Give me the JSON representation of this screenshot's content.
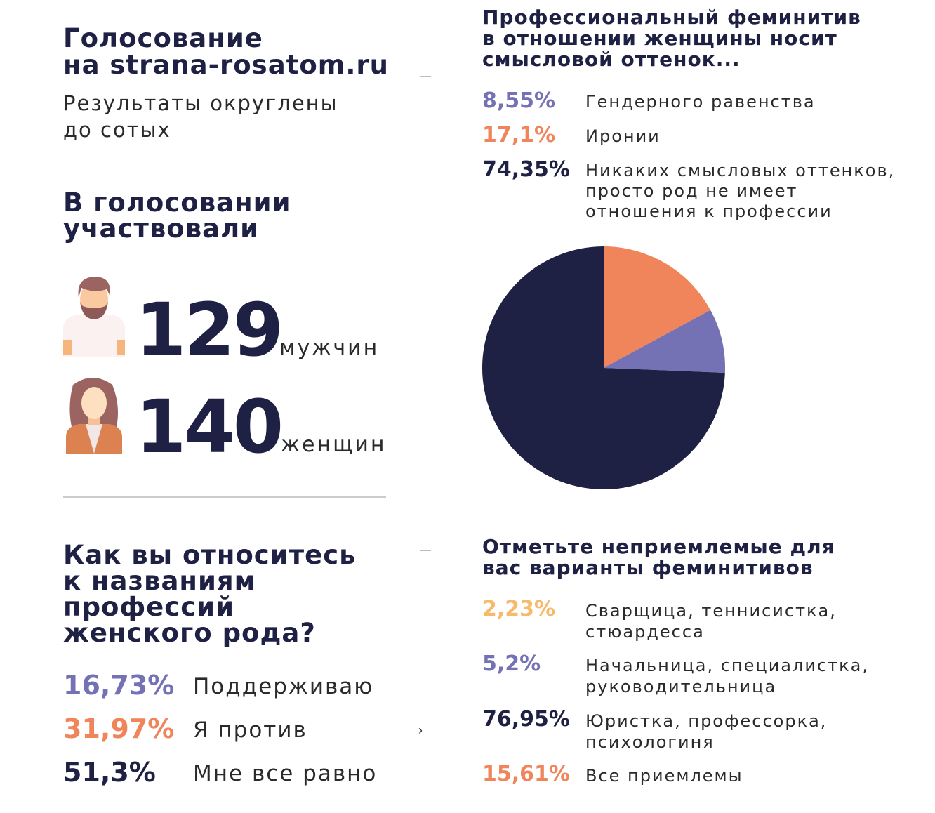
{
  "header": {
    "title_line1": "Голосование",
    "title_line2": "на strana-rosatom.ru",
    "subtitle_line1": "Результаты округлены",
    "subtitle_line2": "до сотых"
  },
  "participants": {
    "title_line1": "В голосовании",
    "title_line2": "участвовали",
    "men": {
      "count": "129",
      "label": "мужчин",
      "icon": "man-avatar-icon"
    },
    "women": {
      "count": "140",
      "label": "женщин",
      "icon": "woman-avatar-icon"
    }
  },
  "attitude": {
    "title_lines": [
      "Как вы относитесь",
      "к названиям",
      "профессий",
      "женского рода?"
    ],
    "items": [
      {
        "value": "16,73%",
        "label": "Поддерживаю",
        "color": "#7471b4"
      },
      {
        "value": "31,97%",
        "label": "Я против",
        "color": "#f0845a"
      },
      {
        "value": "51,3%",
        "label": "Мне все равно",
        "color": "#1e2044"
      }
    ]
  },
  "nuance": {
    "title_lines": [
      "Профессиональный феминитив",
      "в отношении женщины носит",
      "смысловой оттенок..."
    ],
    "items": [
      {
        "value": "8,55%",
        "label_lines": [
          "Гендерного равенства"
        ],
        "color": "#7471b4"
      },
      {
        "value": "17,1%",
        "label_lines": [
          "Иронии"
        ],
        "color": "#f0845a"
      },
      {
        "value": "74,35%",
        "label_lines": [
          "Никаких смысловых оттенков,",
          "просто род не имеет",
          "отношения к профессии"
        ],
        "color": "#1e2044"
      }
    ]
  },
  "chart_data": {
    "type": "pie",
    "start": "top",
    "direction": "clockwise",
    "slices": [
      {
        "label": "Иронии",
        "value": 17.1,
        "color": "#f0845a"
      },
      {
        "label": "Гендерного равенства",
        "value": 8.55,
        "color": "#7471b4"
      },
      {
        "label": "Никаких смысловых оттенков",
        "value": 74.35,
        "color": "#1e2044"
      }
    ]
  },
  "unacceptable": {
    "title_lines": [
      "Отметьте неприемлемые для",
      "вас варианты феминитивов"
    ],
    "items": [
      {
        "value": "2,23%",
        "label_lines": [
          "Сварщица, теннисистка,",
          "стюардесса"
        ],
        "color": "#f7b96a"
      },
      {
        "value": "5,2%",
        "label_lines": [
          "Начальница, специалистка,",
          "руководительница"
        ],
        "color": "#7471b4"
      },
      {
        "value": "76,95%",
        "label_lines": [
          "Юристка, профессорка,",
          "психологиня"
        ],
        "color": "#1e2044"
      },
      {
        "value": "15,61%",
        "label_lines": [
          "Все приемлемы"
        ],
        "color": "#f0845a"
      }
    ]
  },
  "misc": {
    "chevron": "›"
  }
}
